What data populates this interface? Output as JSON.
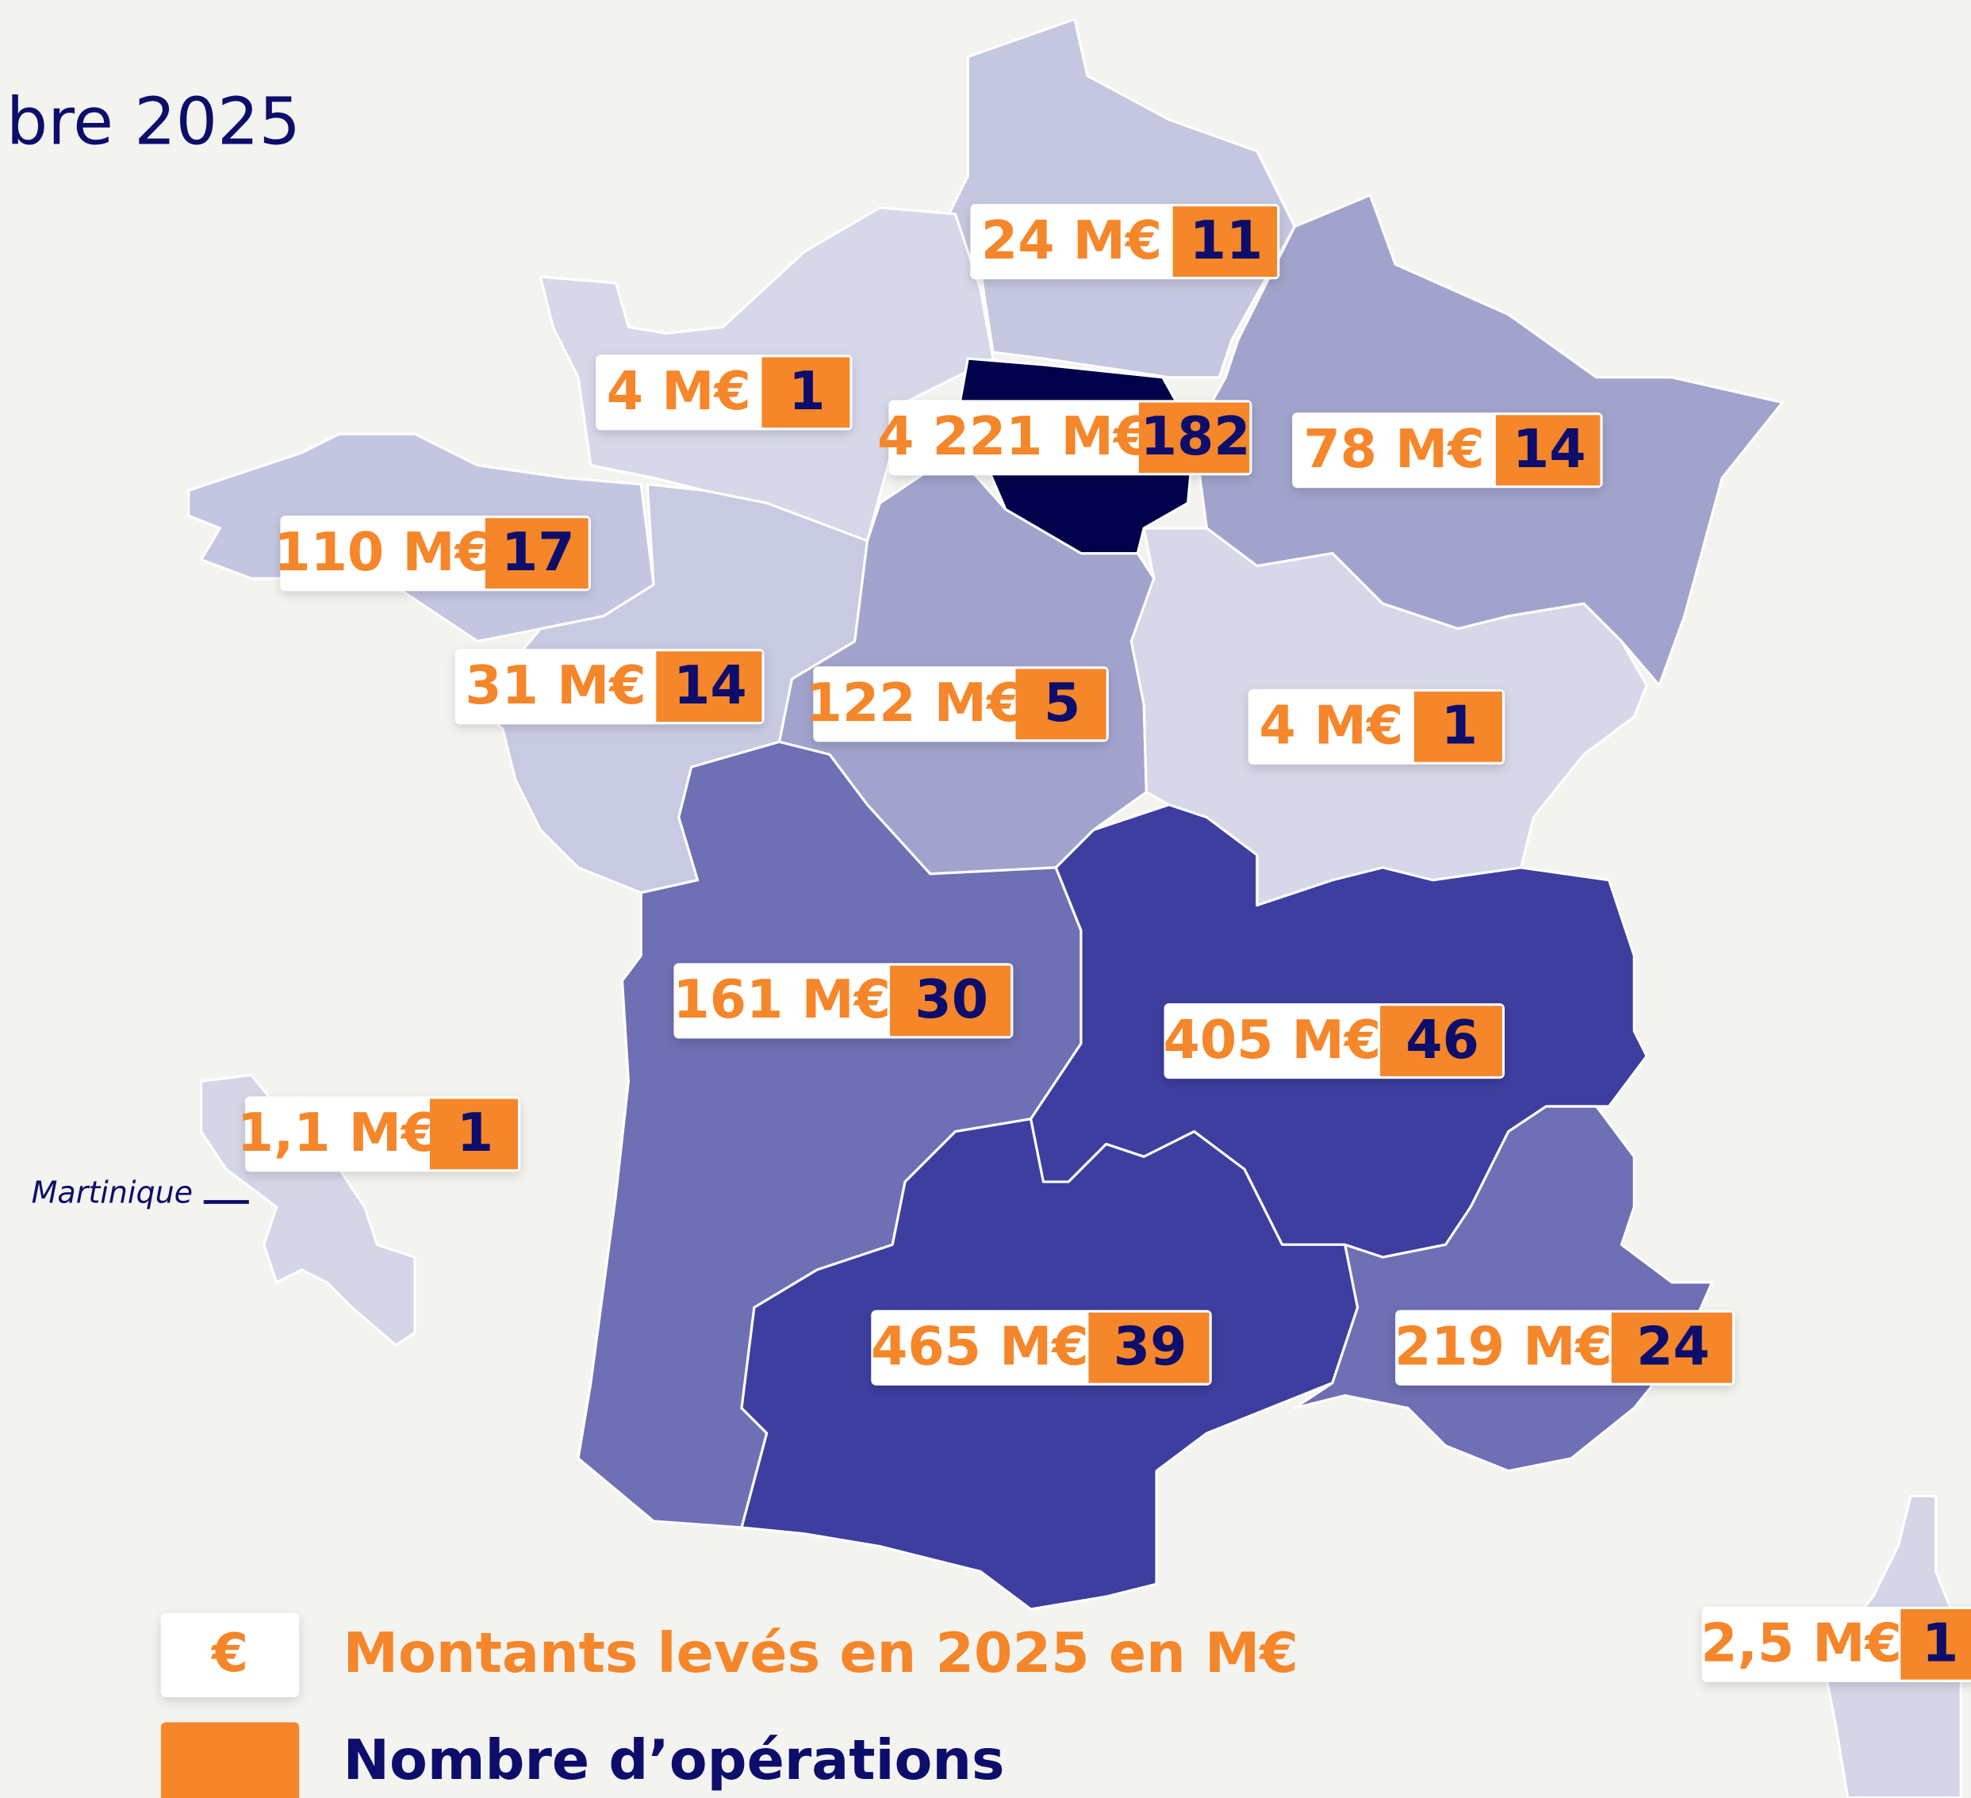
{
  "title": "bre 2025",
  "regions": [
    {
      "amount": "24 M€",
      "count": 11
    },
    {
      "amount": "4 M€",
      "count": 1
    },
    {
      "amount": "4 221 M€",
      "count": 182
    },
    {
      "amount": "78 M€",
      "count": 14
    },
    {
      "amount": "110 M€",
      "count": 17
    },
    {
      "amount": "31 M€",
      "count": 14
    },
    {
      "amount": "122 M€",
      "count": 5
    },
    {
      "amount": "4 M€",
      "count": 1
    },
    {
      "amount": "161 M€",
      "count": 30
    },
    {
      "amount": "405 M€",
      "count": 46
    },
    {
      "amount": "1,1 M€",
      "count": 1
    },
    {
      "amount": "465 M€",
      "count": 39
    },
    {
      "amount": "219 M€",
      "count": 24
    },
    {
      "amount": "2,5 M€",
      "count": 1
    }
  ],
  "martinique_label": "Martinique",
  "legend": {
    "amount_symbol": "€",
    "amount_label": "Montants levés en 2025 en M€",
    "count_label": "Nombre d’opérations"
  }
}
